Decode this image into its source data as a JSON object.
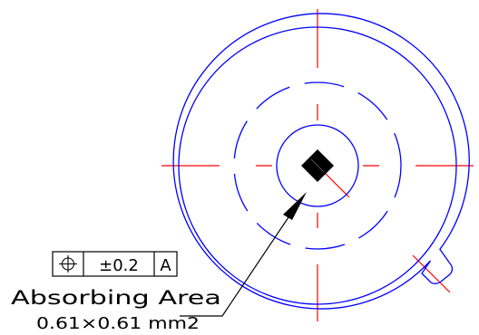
{
  "drawing": {
    "tolerance_frame": {
      "symbol_icon": "position-tolerance-icon",
      "tolerance": "±0.2",
      "datum": "A"
    },
    "callout": {
      "label": "Absorbing Area",
      "size": "0.61×0.61 mm2"
    }
  },
  "colors": {
    "outline": "#0000ff",
    "centerline": "#ff0000",
    "annotation": "#000000"
  }
}
